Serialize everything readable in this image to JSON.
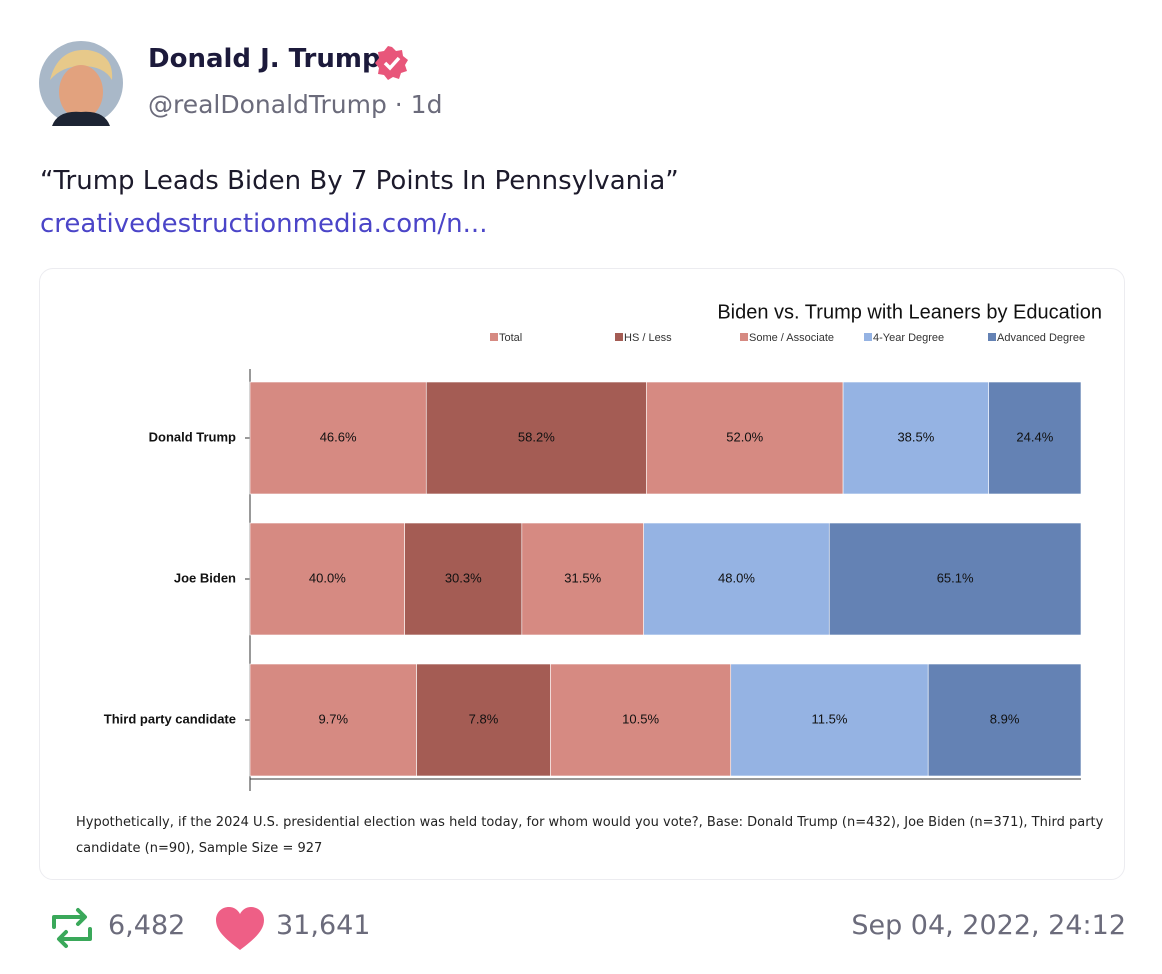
{
  "post": {
    "author": "Donald J. Trump",
    "handle_line": "@realDonaldTrump · 1d",
    "text": "“Trump Leads Biden By 7 Points In Pennsylvania”",
    "link": "creativedestructionmedia.com/n...",
    "retweets": "6,482",
    "likes": "31,641",
    "date": "Sep 04, 2022, 24:12"
  },
  "chart_data": {
    "type": "bar",
    "orientation": "horizontal",
    "stacking": "percent",
    "title": "Biden vs. Trump with Leaners by Education",
    "categories": [
      "Donald Trump",
      "Joe Biden",
      "Third party candidate"
    ],
    "series": [
      {
        "name": "Total",
        "color": "#d68a82",
        "values": [
          46.6,
          40.0,
          9.7
        ],
        "value_labels": [
          "46.6%",
          "40.0%",
          "9.7%"
        ]
      },
      {
        "name": "HS / Less",
        "color": "#a45c54",
        "values": [
          58.2,
          30.3,
          7.8
        ],
        "value_labels": [
          "58.2%",
          "30.3%",
          "7.8%"
        ]
      },
      {
        "name": "Some / Associate",
        "color": "#d68a82",
        "values": [
          52.0,
          31.5,
          10.5
        ],
        "value_labels": [
          "52.0%",
          "31.5%",
          "10.5%"
        ]
      },
      {
        "name": "4-Year Degree",
        "color": "#95b3e3",
        "values": [
          38.5,
          48.0,
          11.5
        ],
        "value_labels": [
          "38.5%",
          "48.0%",
          "11.5%"
        ]
      },
      {
        "name": "Advanced Degree",
        "color": "#6482b4",
        "values": [
          24.4,
          65.1,
          8.9
        ],
        "value_labels": [
          "24.4%",
          "65.1%",
          "8.9%"
        ]
      }
    ],
    "footnote": "Hypothetically, if the 2024 U.S. presidential election was held today, for whom would you vote?, Base: Donald Trump (n=432), Joe Biden (n=371), Third party candidate (n=90), Sample Size = 927"
  }
}
